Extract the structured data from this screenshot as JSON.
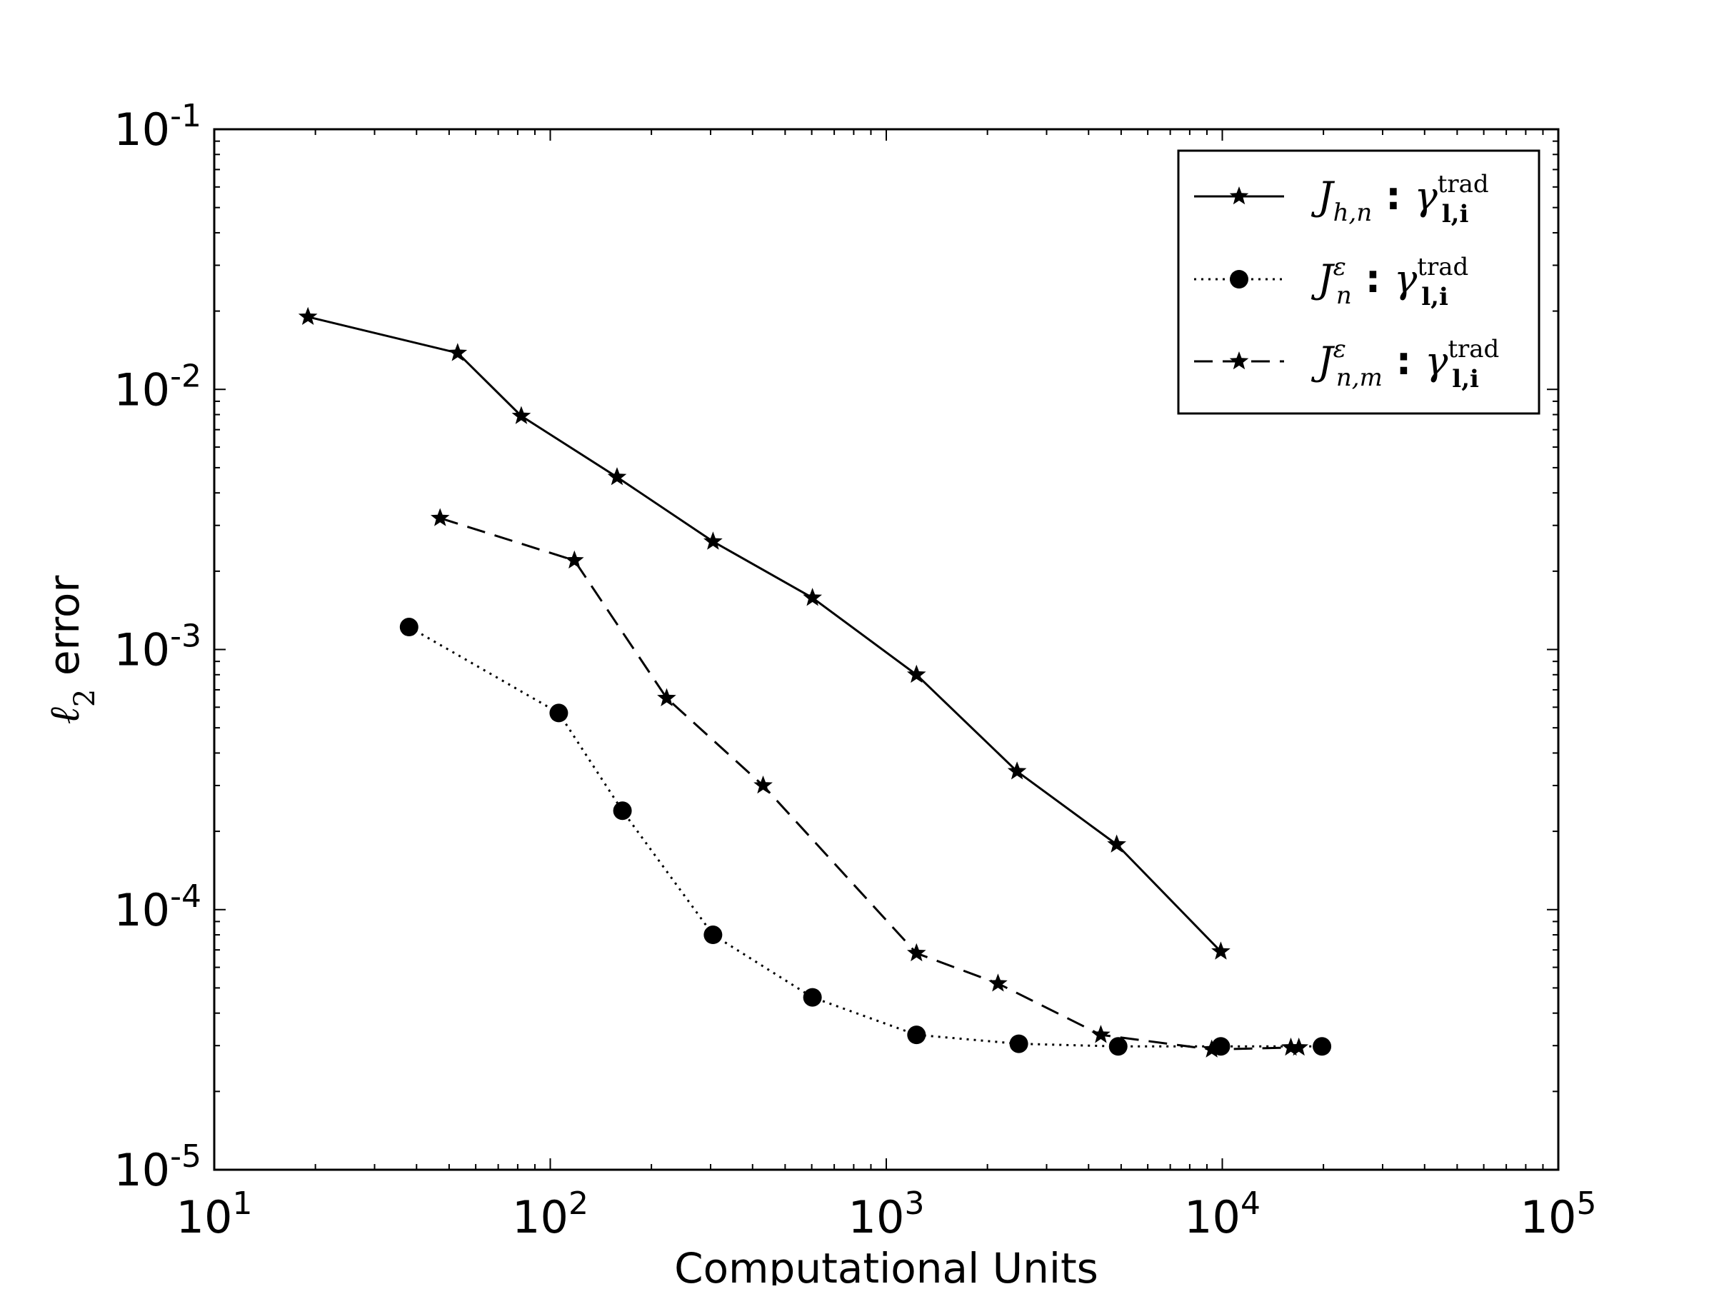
{
  "chart_data": {
    "type": "line",
    "title": "",
    "xlabel": "Computational Units",
    "ylabel": "ℓ2 error",
    "xscale": "log",
    "yscale": "log",
    "xlim": [
      10,
      100000
    ],
    "ylim": [
      1e-05,
      0.1
    ],
    "x_ticks": [
      {
        "value": 10,
        "base": "10",
        "exp": "1"
      },
      {
        "value": 100,
        "base": "10",
        "exp": "2"
      },
      {
        "value": 1000,
        "base": "10",
        "exp": "3"
      },
      {
        "value": 10000,
        "base": "10",
        "exp": "4"
      },
      {
        "value": 100000,
        "base": "10",
        "exp": "5"
      }
    ],
    "y_ticks": [
      {
        "value": 1e-05,
        "base": "10",
        "exp": "-5"
      },
      {
        "value": 0.0001,
        "base": "10",
        "exp": "-4"
      },
      {
        "value": 0.001,
        "base": "10",
        "exp": "-3"
      },
      {
        "value": 0.01,
        "base": "10",
        "exp": "-2"
      },
      {
        "value": 0.1,
        "base": "10",
        "exp": "-1"
      }
    ],
    "grid": false,
    "legend_position": "top-right",
    "series": [
      {
        "name": "J_{h,n} : γ_{l,i}^{trad}",
        "legend": {
          "sym": "J",
          "sub": "h,n",
          "sup": "",
          "gamma_sup": "trad",
          "gamma_sub": "l,i"
        },
        "linestyle": "solid",
        "marker": "star",
        "color": "#000000",
        "x": [
          19,
          53,
          82,
          158,
          305,
          603,
          1230,
          2450,
          4850,
          9900
        ],
        "y": [
          0.019,
          0.0138,
          0.0079,
          0.0046,
          0.0026,
          0.00158,
          0.0008,
          0.00034,
          0.000178,
          6.9e-05
        ]
      },
      {
        "name": "J_n^ε : γ_{l,i}^{trad}",
        "legend": {
          "sym": "J",
          "sub": "n",
          "sup": "ε",
          "gamma_sup": "trad",
          "gamma_sub": "l,i"
        },
        "linestyle": "dotted",
        "marker": "circle",
        "color": "#000000",
        "x": [
          38,
          106,
          164,
          305,
          603,
          1230,
          2480,
          4900,
          9900,
          19800
        ],
        "y": [
          0.00122,
          0.00057,
          0.00024,
          8e-05,
          4.6e-05,
          3.3e-05,
          3.05e-05,
          2.98e-05,
          2.98e-05,
          2.98e-05
        ]
      },
      {
        "name": "J_{n,m}^ε : γ_{l,i}^{trad}",
        "legend": {
          "sym": "J",
          "sub": "n,m",
          "sup": "ε",
          "gamma_sup": "trad",
          "gamma_sub": "l,i"
        },
        "linestyle": "dashed",
        "marker": "star",
        "color": "#000000",
        "x": [
          47,
          118,
          222,
          430,
          1230,
          2150,
          4350,
          9300,
          16000,
          16900
        ],
        "y": [
          0.0032,
          0.0022,
          0.00065,
          0.0003,
          6.8e-05,
          5.2e-05,
          3.3e-05,
          2.9e-05,
          2.95e-05,
          2.95e-05
        ]
      }
    ]
  }
}
